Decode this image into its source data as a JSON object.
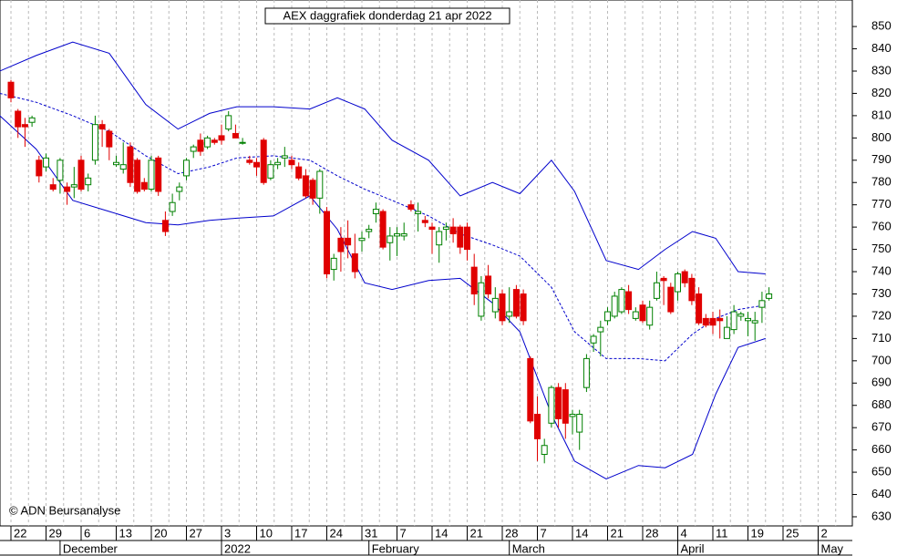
{
  "chart_data": {
    "type": "candlestick",
    "title": "AEX daggrafiek donderdag 21 apr 2022",
    "copyright": "© ADN Beursanalyse",
    "xlim": [
      -1.56,
      119.87
    ],
    "ylim": [
      625.9,
      861.9
    ],
    "yticks": [
      630,
      640,
      650,
      660,
      670,
      680,
      690,
      700,
      710,
      720,
      730,
      740,
      750,
      760,
      770,
      780,
      790,
      800,
      810,
      820,
      830,
      840,
      850
    ],
    "xticks": [
      {
        "value": 0,
        "label": "22"
      },
      {
        "value": 5,
        "label": "29"
      },
      {
        "value": 10,
        "label": "6"
      },
      {
        "value": 15,
        "label": "13"
      },
      {
        "value": 20,
        "label": "20"
      },
      {
        "value": 25,
        "label": "27"
      },
      {
        "value": 30,
        "label": "3"
      },
      {
        "value": 35,
        "label": "10"
      },
      {
        "value": 40,
        "label": "17"
      },
      {
        "value": 45,
        "label": "24"
      },
      {
        "value": 50,
        "label": "31"
      },
      {
        "value": 55,
        "label": "7"
      },
      {
        "value": 60,
        "label": "14"
      },
      {
        "value": 65,
        "label": "21"
      },
      {
        "value": 70,
        "label": "28"
      },
      {
        "value": 75,
        "label": "7"
      },
      {
        "value": 80,
        "label": "14"
      },
      {
        "value": 85,
        "label": "21"
      },
      {
        "value": 90,
        "label": "28"
      },
      {
        "value": 95,
        "label": "4"
      },
      {
        "value": 100,
        "label": "11"
      },
      {
        "value": 105,
        "label": "19"
      },
      {
        "value": 110,
        "label": "25"
      },
      {
        "value": 115,
        "label": "2"
      }
    ],
    "months": [
      {
        "value": 7,
        "label": "December"
      },
      {
        "value": 30,
        "label": "2022"
      },
      {
        "value": 51,
        "label": "February"
      },
      {
        "value": 71,
        "label": "March"
      },
      {
        "value": 95,
        "label": "April"
      },
      {
        "value": 115,
        "label": "May"
      }
    ],
    "up_color": "#008000",
    "down_color": "#e00000",
    "band_color": "#0000cc",
    "x": [
      0,
      1,
      2,
      3,
      4,
      5,
      6,
      7,
      8,
      9,
      10,
      11,
      12,
      13,
      14,
      15,
      16,
      17,
      18,
      19,
      20,
      21,
      22,
      23,
      24,
      25,
      26,
      27,
      28,
      29,
      30,
      31,
      32,
      33,
      34,
      35,
      36,
      37,
      38,
      39,
      40,
      41,
      42,
      43,
      44,
      45,
      46,
      47,
      48,
      49,
      50,
      51,
      52,
      53,
      54,
      55,
      56,
      57,
      58,
      59,
      60,
      61,
      62,
      63,
      64,
      65,
      66,
      67,
      68,
      69,
      70,
      71,
      72,
      73,
      74,
      75,
      76,
      77,
      78,
      79,
      80,
      81,
      82,
      83,
      84,
      85,
      86,
      87,
      88,
      89,
      90,
      91,
      92,
      93,
      94,
      95,
      96,
      97,
      98,
      99,
      100,
      101,
      102,
      103,
      104,
      105,
      106,
      107,
      108
    ],
    "open": [
      825,
      812,
      806,
      807,
      790,
      787,
      779,
      781,
      778,
      778,
      790,
      779,
      790,
      806,
      803,
      788,
      786,
      796,
      790,
      780,
      777,
      791,
      763,
      767,
      776,
      783,
      794,
      799,
      796,
      799,
      801,
      804,
      802,
      798,
      790,
      789,
      799,
      782,
      788,
      791,
      790,
      787,
      783,
      781,
      773,
      767,
      741,
      755,
      755,
      748,
      754,
      758,
      766,
      767,
      753,
      756,
      756,
      770,
      766,
      763,
      760,
      752,
      759,
      760,
      760,
      760,
      742,
      720,
      738,
      722,
      730,
      720,
      732,
      730,
      701,
      676,
      658,
      672,
      688,
      687,
      675,
      668,
      688,
      708,
      713,
      718,
      720,
      722,
      731,
      719,
      725,
      716,
      728,
      737,
      733,
      731,
      740,
      737,
      730,
      719,
      719,
      719,
      710,
      714,
      720,
      718,
      717,
      724,
      728
    ],
    "high": [
      826,
      813,
      809,
      810,
      792,
      793,
      782,
      791,
      780,
      787,
      792,
      784,
      810,
      808,
      804,
      792,
      798,
      798,
      791,
      782,
      792,
      792,
      767,
      775,
      780,
      791,
      797,
      802,
      801,
      800,
      806,
      812,
      806,
      800,
      792,
      791,
      800,
      790,
      791,
      796,
      792,
      789,
      786,
      782,
      786,
      769,
      748,
      760,
      763,
      757,
      758,
      761,
      771,
      768,
      760,
      760,
      762,
      772,
      771,
      765,
      762,
      760,
      762,
      764,
      761,
      762,
      748,
      738,
      743,
      733,
      732,
      733,
      734,
      732,
      702,
      684,
      665,
      689,
      690,
      690,
      678,
      678,
      703,
      712,
      718,
      724,
      731,
      733,
      734,
      724,
      727,
      727,
      740,
      738,
      735,
      740,
      741,
      739,
      733,
      721,
      722,
      723,
      720,
      725,
      722,
      722,
      722,
      731,
      733
    ],
    "low": [
      816,
      800,
      796,
      805,
      780,
      785,
      776,
      775,
      770,
      773,
      776,
      776,
      788,
      796,
      790,
      787,
      784,
      778,
      775,
      776,
      776,
      774,
      756,
      765,
      772,
      781,
      791,
      792,
      795,
      797,
      797,
      803,
      800,
      797,
      788,
      783,
      779,
      781,
      786,
      787,
      786,
      781,
      773,
      770,
      766,
      737,
      736,
      740,
      746,
      737,
      749,
      755,
      762,
      750,
      745,
      747,
      754,
      767,
      758,
      760,
      748,
      744,
      754,
      753,
      748,
      745,
      725,
      718,
      728,
      719,
      716,
      717,
      719,
      716,
      672,
      655,
      654,
      670,
      670,
      665,
      667,
      660,
      686,
      704,
      702,
      716,
      719,
      721,
      721,
      718,
      717,
      714,
      727,
      725,
      721,
      727,
      733,
      725,
      716,
      715,
      712,
      710,
      710,
      712,
      718,
      711,
      709,
      717,
      727
    ],
    "close": [
      818,
      805,
      805,
      809,
      783,
      791,
      777,
      790,
      776,
      779,
      777,
      782,
      806,
      804,
      796,
      789,
      788,
      780,
      776,
      777,
      790,
      776,
      758,
      771,
      778,
      790,
      796,
      794,
      800,
      798,
      799,
      810,
      800,
      798,
      789,
      787,
      780,
      788,
      789,
      792,
      788,
      782,
      774,
      773,
      785,
      739,
      746,
      749,
      752,
      740,
      755,
      759,
      768,
      751,
      756,
      757,
      757,
      768,
      767,
      762,
      759,
      758,
      760,
      757,
      751,
      750,
      730,
      735,
      730,
      728,
      718,
      722,
      720,
      718,
      673,
      665,
      662,
      688,
      674,
      672,
      676,
      676,
      701,
      711,
      715,
      722,
      729,
      732,
      723,
      722,
      718,
      724,
      735,
      736,
      722,
      739,
      735,
      727,
      717,
      716,
      716,
      718,
      715,
      722,
      721,
      719,
      718,
      727,
      730
    ],
    "bands": [
      {
        "name": "upper",
        "values": [
          830,
          837,
          843,
          838,
          815,
          804,
          811,
          814,
          814,
          813,
          818,
          813,
          799,
          790,
          774,
          780,
          775,
          790,
          776,
          745,
          741,
          750,
          758,
          755,
          740,
          739
        ]
      },
      {
        "name": "middle",
        "values": [
          820,
          816,
          810,
          803,
          792,
          784,
          787,
          791,
          792,
          790,
          783,
          777,
          772,
          765,
          757,
          752,
          747,
          733,
          713,
          701,
          701,
          700,
          712,
          719,
          723,
          725
        ]
      },
      {
        "name": "lower",
        "values": [
          810,
          795,
          772,
          767,
          762,
          761,
          763,
          764,
          765,
          774,
          759,
          735,
          732,
          736,
          737,
          726,
          713,
          676,
          655,
          647,
          653,
          652,
          658,
          685,
          706,
          710
        ]
      }
    ],
    "band_x": [
      -1.6,
      3.6,
      8.8,
      14.0,
      19.2,
      23.8,
      28.3,
      32.2,
      37.4,
      42.6,
      46.5,
      50.4,
      54.3,
      59.5,
      64.0,
      68.6,
      72.5,
      77.0,
      80.3,
      84.8,
      89.4,
      93.2,
      97.1,
      100.4,
      103.6,
      107.5
    ]
  }
}
